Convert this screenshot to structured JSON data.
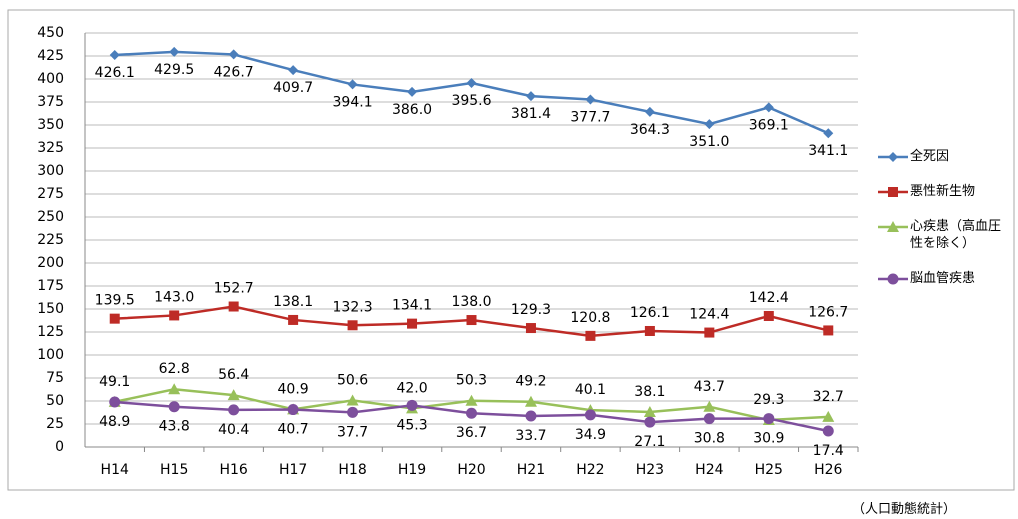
{
  "chart_data": {
    "type": "line",
    "categories": [
      "H14",
      "H15",
      "H16",
      "H17",
      "H18",
      "H19",
      "H20",
      "H21",
      "H22",
      "H23",
      "H24",
      "H25",
      "H26"
    ],
    "series": [
      {
        "name": "全死因",
        "color": "#4a7ebb",
        "marker": "diamond",
        "values": [
          426.1,
          429.5,
          426.7,
          409.7,
          394.1,
          386.0,
          395.6,
          381.4,
          377.7,
          364.3,
          351.0,
          369.1,
          341.1
        ],
        "value_labels": [
          "426.1",
          "429.5",
          "426.7",
          "409.7",
          "394.1",
          "386.0",
          "395.6",
          "381.4",
          "377.7",
          "364.3",
          "351.0",
          "369.1",
          "341.1"
        ]
      },
      {
        "name": "悪性新生物",
        "color": "#be2b26",
        "marker": "square",
        "values": [
          139.5,
          143.0,
          152.7,
          138.1,
          132.3,
          134.1,
          138.0,
          129.3,
          120.8,
          126.1,
          124.4,
          142.4,
          126.7
        ],
        "value_labels": [
          "139.5",
          "143.0",
          "152.7",
          "138.1",
          "132.3",
          "134.1",
          "138.0",
          "129.3",
          "120.8",
          "126.1",
          "124.4",
          "142.4",
          "126.7"
        ]
      },
      {
        "name": "心疾患（高血圧性を除く）",
        "color": "#98c05a",
        "marker": "triangle",
        "values": [
          49.1,
          62.8,
          56.4,
          40.9,
          50.6,
          42.0,
          50.3,
          49.2,
          40.1,
          38.1,
          43.7,
          29.3,
          32.7
        ],
        "value_labels": [
          "49.1",
          "62.8",
          "56.4",
          "40.9",
          "50.6",
          "42.0",
          "50.3",
          "49.2",
          "40.1",
          "38.1",
          "43.7",
          "29.3",
          "32.7"
        ]
      },
      {
        "name": "脳血管疾患",
        "color": "#7d4f9c",
        "marker": "circle",
        "values": [
          48.9,
          43.8,
          40.4,
          40.7,
          37.7,
          45.3,
          36.7,
          33.7,
          34.9,
          27.1,
          30.8,
          30.9,
          17.4
        ],
        "value_labels": [
          "48.9",
          "43.8",
          "40.4",
          "40.7",
          "37.7",
          "45.3",
          "36.7",
          "33.7",
          "34.9",
          "27.1",
          "30.8",
          "30.9",
          "17.4"
        ]
      }
    ],
    "ylim": [
      0,
      450
    ],
    "yticks": [
      0,
      25,
      50,
      75,
      100,
      125,
      150,
      175,
      200,
      225,
      250,
      275,
      300,
      325,
      350,
      375,
      400,
      425,
      450
    ],
    "grid": true,
    "legend": "right",
    "source": "（人口動態統計）"
  }
}
